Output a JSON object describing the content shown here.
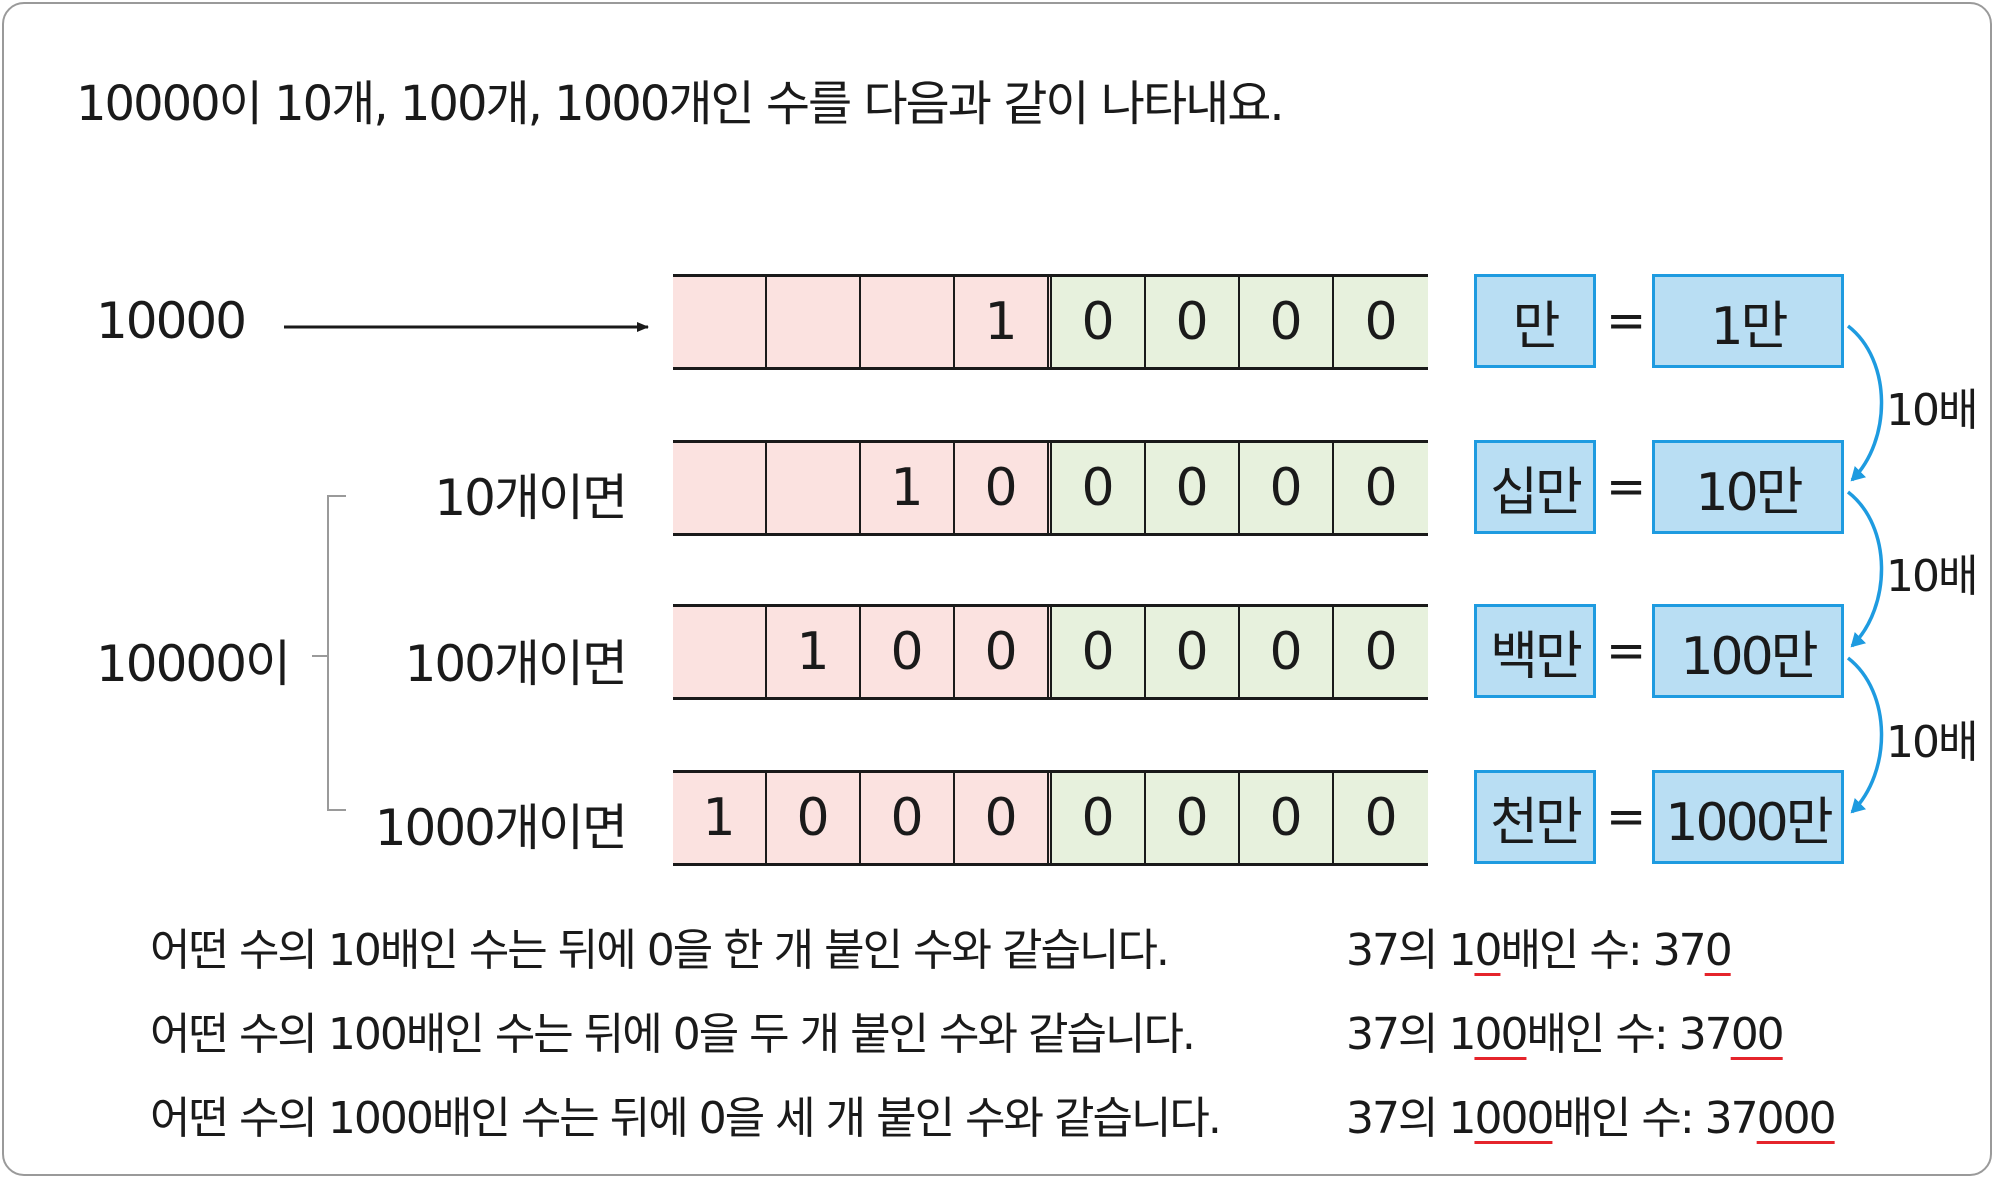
{
  "intro": "10000이 10개, 100개, 1000개인 수를 다음과 같이 나타내요.",
  "start_label": "10000",
  "group_label": "10000이",
  "rows": [
    {
      "label": "",
      "digits": [
        "",
        "",
        "",
        "1",
        "0",
        "0",
        "0",
        "0"
      ],
      "unit": "만",
      "value": "1만"
    },
    {
      "label": "10개이면",
      "digits": [
        "",
        "",
        "1",
        "0",
        "0",
        "0",
        "0",
        "0"
      ],
      "unit": "십만",
      "value": "10만"
    },
    {
      "label": "100개이면",
      "digits": [
        "",
        "1",
        "0",
        "0",
        "0",
        "0",
        "0",
        "0"
      ],
      "unit": "백만",
      "value": "100만"
    },
    {
      "label": "1000개이면",
      "digits": [
        "1",
        "0",
        "0",
        "0",
        "0",
        "0",
        "0",
        "0"
      ],
      "unit": "천만",
      "value": "1000만"
    }
  ],
  "equals": "=",
  "times_labels": [
    "10배",
    "10배",
    "10배"
  ],
  "notes": [
    "어떤 수의 10배인 수는 뒤에 0을 한 개 붙인 수와 같습니다.",
    "어떤 수의 100배인 수는 뒤에 0을 두 개 붙인 수와 같습니다.",
    "어떤 수의 1000배인 수는 뒤에 0을 세 개 붙인 수와 같습니다."
  ],
  "examples": [
    {
      "pre1": "37의 1",
      "ul1": "0",
      "mid": "배인 수: 37",
      "ul2": "0"
    },
    {
      "pre1": "37의 1",
      "ul1": "00",
      "mid": "배인 수: 37",
      "ul2": "00"
    },
    {
      "pre1": "37의 1",
      "ul1": "000",
      "mid": "배인 수: 37",
      "ul2": "000"
    }
  ],
  "colors": {
    "pink": "#fbe2e0",
    "green": "#e7f1dd",
    "blue_fill": "#b9def3",
    "blue_border": "#1e9be0",
    "underline": "#e5242b"
  }
}
